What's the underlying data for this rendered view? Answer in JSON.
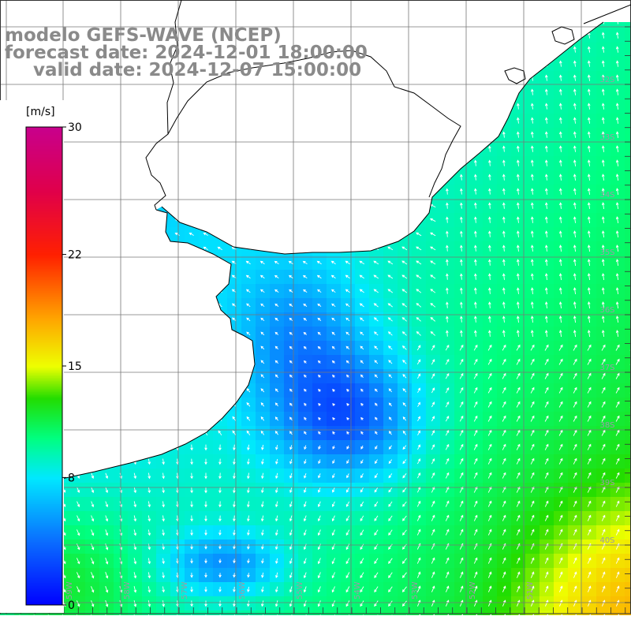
{
  "title": {
    "line1": "modelo GEFS-WAVE (NCEP)",
    "line2": "forecast date: 2024-12-01 18:00:00",
    "line3": "valid date: 2024-12-07 15:00:00"
  },
  "colorbar": {
    "unit": "[m/s]",
    "ticks": [
      {
        "value": 0,
        "label": "0"
      },
      {
        "value": 8,
        "label": "8"
      },
      {
        "value": 15,
        "label": "15"
      },
      {
        "value": 22,
        "label": "22"
      },
      {
        "value": 30,
        "label": "30"
      }
    ],
    "stops": [
      {
        "value": 0,
        "color": "#0000ff"
      },
      {
        "value": 4,
        "color": "#0a6cff"
      },
      {
        "value": 8,
        "color": "#00e8ff"
      },
      {
        "value": 10.5,
        "color": "#00ff80"
      },
      {
        "value": 13,
        "color": "#22dd00"
      },
      {
        "value": 15,
        "color": "#eeff00"
      },
      {
        "value": 18,
        "color": "#ffa500"
      },
      {
        "value": 22,
        "color": "#ff2000"
      },
      {
        "value": 26,
        "color": "#e0004a"
      },
      {
        "value": 30,
        "color": "#c8008c"
      }
    ]
  },
  "lat_labels": [
    "32S",
    "33S",
    "34S",
    "35S",
    "36S",
    "37S",
    "38S",
    "39S",
    "40S"
  ],
  "lon_labels": [
    "60W",
    "59W",
    "58W",
    "57W",
    "56W",
    "55W",
    "54W",
    "53W",
    "52W",
    "51W"
  ],
  "colors": {
    "land": "#ffffff",
    "coast": "#000000",
    "grid": "#777777",
    "arrows": "#ffffff",
    "title": "#8a8a8a"
  }
}
